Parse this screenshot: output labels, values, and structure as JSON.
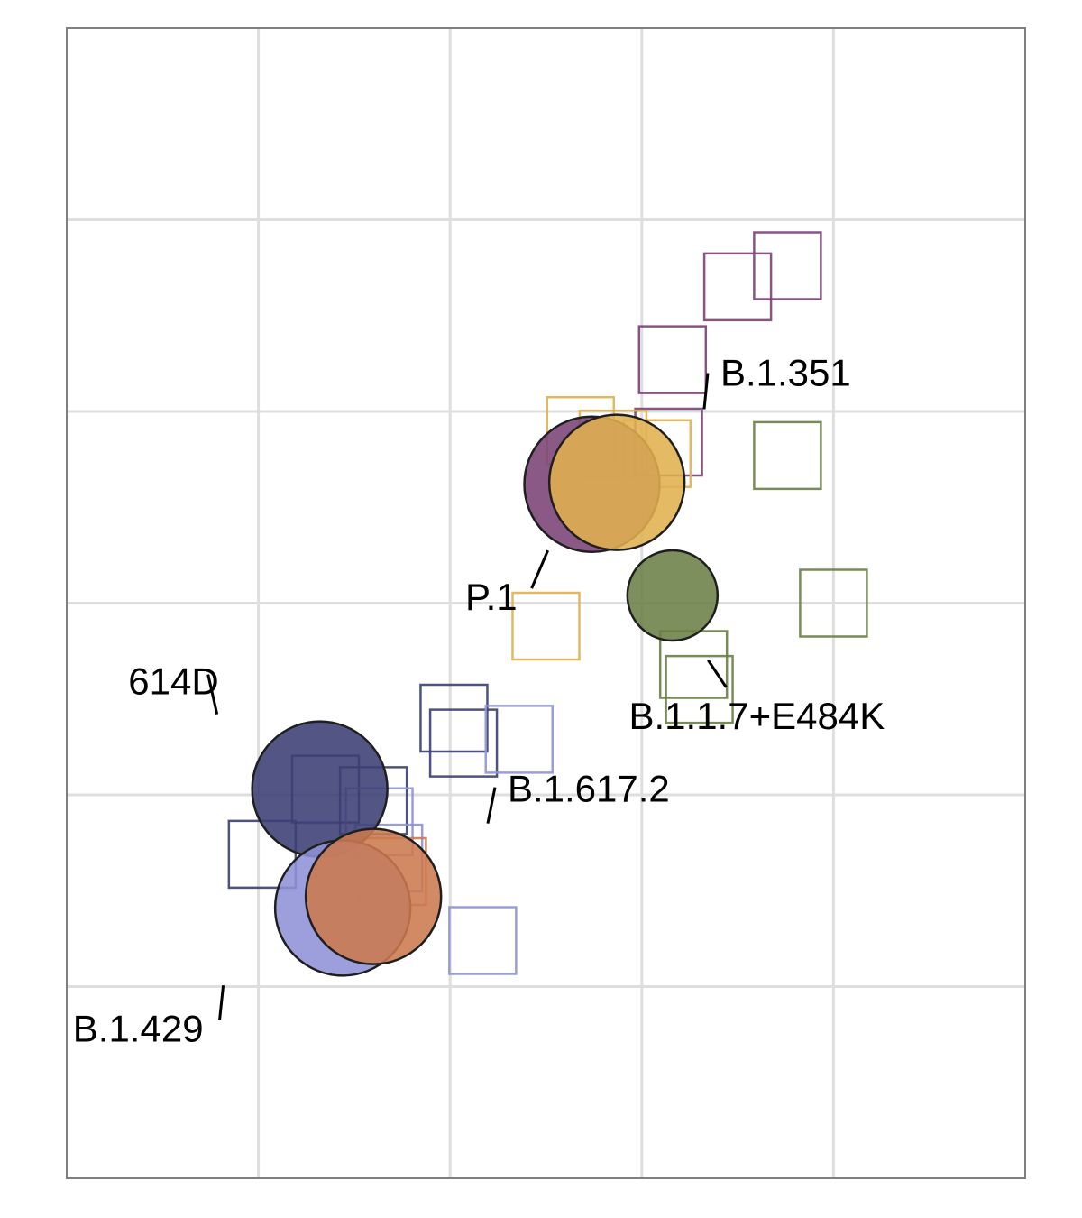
{
  "chart_data": {
    "type": "scatter",
    "title": "",
    "xlabel": "",
    "ylabel": "",
    "grid": true,
    "xlim": [
      0,
      5
    ],
    "ylim": [
      0,
      6
    ],
    "x_gridlines": [
      1,
      2,
      3,
      4
    ],
    "y_gridlines": [
      1,
      2,
      3,
      4,
      5
    ],
    "variants": [
      {
        "name": "614D",
        "color": "#3b3f73",
        "antigen": [
          1.32,
          2.03
        ],
        "label": [
          0.85,
          2.59
        ],
        "sera": [
          [
            1.35,
            2.03
          ],
          [
            1.02,
            1.69
          ],
          [
            2.02,
            2.4
          ],
          [
            2.07,
            2.27
          ],
          [
            1.6,
            1.97
          ]
        ]
      },
      {
        "name": "B.1.429",
        "color": "#8e92d6",
        "antigen": [
          1.44,
          1.41
        ],
        "label": [
          0.76,
          0.78
        ],
        "sera": [
          [
            2.36,
            2.29
          ],
          [
            1.63,
            1.86
          ],
          [
            2.17,
            1.24
          ],
          [
            1.68,
            1.67
          ]
        ]
      },
      {
        "name": "B.1.617.2",
        "color": "#cc7a50",
        "antigen": [
          1.6,
          1.47
        ],
        "label": [
          2.3,
          2.03
        ],
        "sera": [
          [
            1.7,
            1.6
          ]
        ]
      },
      {
        "name": "B.1.351",
        "color": "#7a4275",
        "antigen": [
          2.74,
          3.62
        ],
        "label": [
          3.41,
          4.2
        ],
        "sera": [
          [
            3.5,
            4.65
          ],
          [
            3.76,
            4.76
          ],
          [
            3.16,
            4.27
          ],
          [
            3.14,
            3.84
          ]
        ]
      },
      {
        "name": "P.1",
        "color": "#e0b050",
        "antigen": [
          2.87,
          3.63
        ],
        "label": [
          2.35,
          3.03
        ],
        "sera": [
          [
            2.68,
            3.9
          ],
          [
            2.85,
            3.83
          ],
          [
            3.08,
            3.78
          ],
          [
            2.5,
            2.88
          ]
        ]
      },
      {
        "name": "B.1.1.7+E484K",
        "color": "#6a7f45",
        "antigen": [
          3.16,
          3.04
        ],
        "label": [
          3.6,
          2.42
        ],
        "sera": [
          [
            3.76,
            3.77
          ],
          [
            4.0,
            3.0
          ],
          [
            3.27,
            2.68
          ],
          [
            3.3,
            2.55
          ]
        ]
      }
    ]
  }
}
